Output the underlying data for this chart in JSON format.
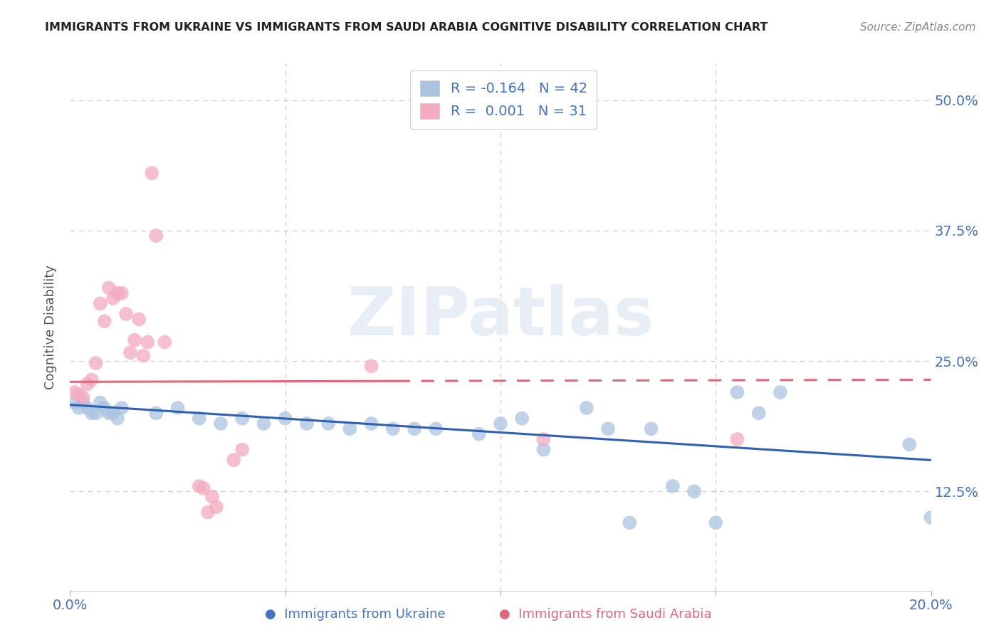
{
  "title": "IMMIGRANTS FROM UKRAINE VS IMMIGRANTS FROM SAUDI ARABIA COGNITIVE DISABILITY CORRELATION CHART",
  "source": "Source: ZipAtlas.com",
  "ylabel": "Cognitive Disability",
  "xlim": [
    0.0,
    0.2
  ],
  "ylim": [
    0.03,
    0.535
  ],
  "watermark": "ZIPatlas",
  "legend_text_color": "#4472c4",
  "ukraine_color": "#aac4e0",
  "saudi_color": "#f4aabf",
  "ukraine_line_color": "#3060b0",
  "saudi_line_color": "#e06878",
  "ukraine_scatter": [
    [
      0.001,
      0.21
    ],
    [
      0.002,
      0.205
    ],
    [
      0.003,
      0.21
    ],
    [
      0.004,
      0.205
    ],
    [
      0.005,
      0.2
    ],
    [
      0.006,
      0.2
    ],
    [
      0.007,
      0.21
    ],
    [
      0.008,
      0.205
    ],
    [
      0.009,
      0.2
    ],
    [
      0.01,
      0.2
    ],
    [
      0.011,
      0.195
    ],
    [
      0.012,
      0.205
    ],
    [
      0.02,
      0.2
    ],
    [
      0.025,
      0.205
    ],
    [
      0.03,
      0.195
    ],
    [
      0.035,
      0.19
    ],
    [
      0.04,
      0.195
    ],
    [
      0.045,
      0.19
    ],
    [
      0.05,
      0.195
    ],
    [
      0.055,
      0.19
    ],
    [
      0.06,
      0.19
    ],
    [
      0.065,
      0.185
    ],
    [
      0.07,
      0.19
    ],
    [
      0.075,
      0.185
    ],
    [
      0.08,
      0.185
    ],
    [
      0.085,
      0.185
    ],
    [
      0.095,
      0.18
    ],
    [
      0.1,
      0.19
    ],
    [
      0.105,
      0.195
    ],
    [
      0.11,
      0.165
    ],
    [
      0.12,
      0.205
    ],
    [
      0.125,
      0.185
    ],
    [
      0.13,
      0.095
    ],
    [
      0.135,
      0.185
    ],
    [
      0.14,
      0.13
    ],
    [
      0.145,
      0.125
    ],
    [
      0.15,
      0.095
    ],
    [
      0.155,
      0.22
    ],
    [
      0.16,
      0.2
    ],
    [
      0.165,
      0.22
    ],
    [
      0.195,
      0.17
    ],
    [
      0.2,
      0.1
    ]
  ],
  "saudi_scatter": [
    [
      0.001,
      0.22
    ],
    [
      0.002,
      0.218
    ],
    [
      0.003,
      0.215
    ],
    [
      0.004,
      0.228
    ],
    [
      0.005,
      0.232
    ],
    [
      0.006,
      0.248
    ],
    [
      0.007,
      0.305
    ],
    [
      0.008,
      0.288
    ],
    [
      0.009,
      0.32
    ],
    [
      0.01,
      0.31
    ],
    [
      0.011,
      0.315
    ],
    [
      0.012,
      0.315
    ],
    [
      0.013,
      0.295
    ],
    [
      0.014,
      0.258
    ],
    [
      0.015,
      0.27
    ],
    [
      0.016,
      0.29
    ],
    [
      0.017,
      0.255
    ],
    [
      0.018,
      0.268
    ],
    [
      0.019,
      0.43
    ],
    [
      0.02,
      0.37
    ],
    [
      0.022,
      0.268
    ],
    [
      0.03,
      0.13
    ],
    [
      0.031,
      0.128
    ],
    [
      0.032,
      0.105
    ],
    [
      0.033,
      0.12
    ],
    [
      0.034,
      0.11
    ],
    [
      0.038,
      0.155
    ],
    [
      0.04,
      0.165
    ],
    [
      0.07,
      0.245
    ],
    [
      0.11,
      0.175
    ],
    [
      0.155,
      0.175
    ]
  ],
  "ukraine_line_x": [
    0.0,
    0.2
  ],
  "ukraine_line_y": [
    0.208,
    0.155
  ],
  "saudi_line_x": [
    0.0,
    0.2
  ],
  "saudi_line_y": [
    0.23,
    0.232
  ]
}
